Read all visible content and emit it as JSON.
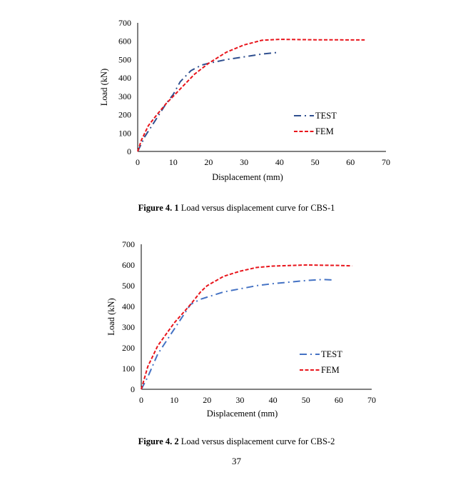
{
  "chart_data": [
    {
      "type": "line",
      "xlabel": "Displacement (mm)",
      "ylabel": "Load (kN)",
      "xlim": [
        0,
        70
      ],
      "ylim": [
        0,
        700
      ],
      "xticks": [
        "0",
        "10",
        "20",
        "30",
        "40",
        "50",
        "60",
        "70"
      ],
      "yticks": [
        "0",
        "100",
        "200",
        "300",
        "400",
        "500",
        "600",
        "700"
      ],
      "grid": false,
      "legend": "right",
      "series": [
        {
          "name": "TEST",
          "color": "#2f4f8f",
          "style": "dash-dot",
          "x": [
            0,
            2,
            5,
            8,
            10,
            12,
            15,
            18,
            20,
            25,
            30,
            35,
            40
          ],
          "y": [
            0,
            80,
            170,
            260,
            310,
            380,
            440,
            470,
            480,
            500,
            515,
            530,
            540
          ]
        },
        {
          "name": "FEM",
          "color": "#e8141b",
          "style": "dashed",
          "x": [
            0,
            1,
            3,
            5,
            8,
            10,
            13,
            16,
            20,
            25,
            30,
            35,
            40,
            50,
            64
          ],
          "y": [
            0,
            60,
            140,
            190,
            260,
            300,
            360,
            420,
            480,
            540,
            580,
            605,
            610,
            608,
            607
          ]
        }
      ]
    },
    {
      "type": "line",
      "xlabel": "Displacement (mm)",
      "ylabel": "Load (kN)",
      "xlim": [
        0,
        70
      ],
      "ylim": [
        0,
        700
      ],
      "xticks": [
        "0",
        "10",
        "20",
        "30",
        "40",
        "50",
        "60",
        "70"
      ],
      "yticks": [
        "0",
        "100",
        "200",
        "300",
        "400",
        "500",
        "600",
        "700"
      ],
      "grid": false,
      "legend": "right",
      "series": [
        {
          "name": "TEST",
          "color": "#4472c4",
          "style": "dash-dot",
          "x": [
            0,
            2,
            5,
            10,
            15,
            18,
            20,
            25,
            30,
            35,
            40,
            50,
            55,
            58
          ],
          "y": [
            0,
            60,
            170,
            290,
            410,
            435,
            445,
            470,
            485,
            500,
            510,
            525,
            530,
            528
          ]
        },
        {
          "name": "FEM",
          "color": "#e8141b",
          "style": "dashed",
          "x": [
            0,
            2,
            5,
            10,
            15,
            18,
            20,
            25,
            30,
            35,
            40,
            50,
            60,
            64
          ],
          "y": [
            0,
            110,
            210,
            320,
            410,
            470,
            500,
            545,
            570,
            588,
            595,
            600,
            598,
            596
          ]
        }
      ]
    }
  ],
  "captions": [
    {
      "label": "Figure 4. 1",
      "text": " Load versus displacement curve for CBS-1"
    },
    {
      "label": "Figure 4. 2",
      "text": " Load versus displacement curve for CBS-2"
    }
  ],
  "page_number": "37"
}
